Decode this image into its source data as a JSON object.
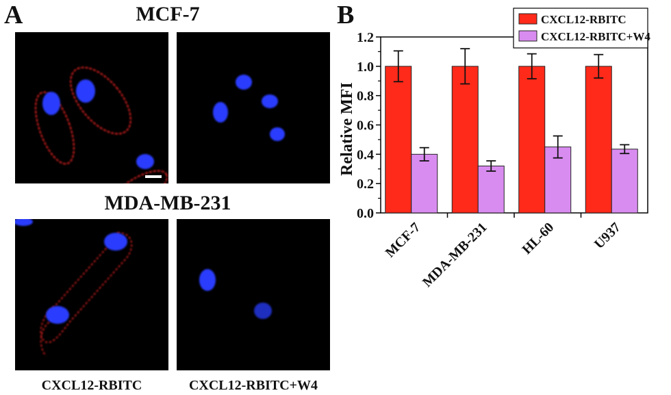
{
  "panel_a": {
    "letter": "A",
    "rows": [
      {
        "title": "MCF-7"
      },
      {
        "title": "MDA-MB-231"
      }
    ],
    "column_labels": [
      "CXCL12-RBITC",
      "CXCL12-RBITC+W4"
    ],
    "colors": {
      "membrane": "#e02020",
      "nucleus": "#2a3cff",
      "background": "#000000"
    }
  },
  "panel_b": {
    "letter": "B"
  },
  "chart_data": {
    "type": "bar",
    "categories": [
      "MCF-7",
      "MDA-MB-231",
      "HL-60",
      "U937"
    ],
    "series": [
      {
        "name": "CXCL12-RBITC",
        "values": [
          1.0,
          1.0,
          1.0,
          1.0
        ],
        "errors": [
          0.105,
          0.12,
          0.085,
          0.08
        ],
        "color": "#ff2a1a"
      },
      {
        "name": "CXCL12-RBITC+W4",
        "values": [
          0.4,
          0.32,
          0.45,
          0.435
        ],
        "errors": [
          0.045,
          0.035,
          0.075,
          0.03
        ],
        "color": "#d98cf0"
      }
    ],
    "ylabel": "Relative MFI",
    "xlabel": "",
    "ylim": [
      0,
      1.2
    ],
    "yticks": [
      "0.0",
      "0.2",
      "0.4",
      "0.6",
      "0.8",
      "1.0",
      "1.2"
    ],
    "legend_position": "top-right",
    "grid": false
  }
}
